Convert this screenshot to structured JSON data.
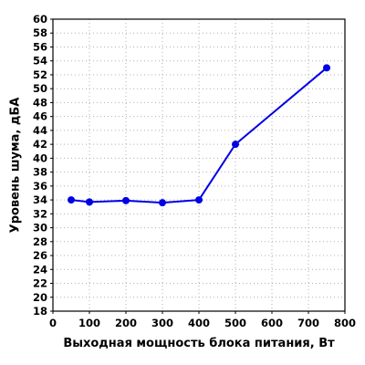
{
  "chart_data": {
    "type": "line",
    "title": "",
    "xlabel": "Выходная мощность блока питания, Вт",
    "ylabel": "Уровень шума, дБА",
    "xlim": [
      0,
      800
    ],
    "ylim": [
      18,
      60
    ],
    "x_ticks": [
      0,
      100,
      200,
      300,
      400,
      500,
      600,
      700,
      800
    ],
    "y_ticks": [
      18,
      20,
      22,
      24,
      26,
      28,
      30,
      32,
      34,
      36,
      38,
      40,
      42,
      44,
      46,
      48,
      50,
      52,
      54,
      56,
      58,
      60
    ],
    "grid": true,
    "legend": "none",
    "series": [
      {
        "color": "#0000e6",
        "points": [
          {
            "x": 50,
            "y": 34.0
          },
          {
            "x": 100,
            "y": 33.7
          },
          {
            "x": 200,
            "y": 33.9
          },
          {
            "x": 300,
            "y": 33.6
          },
          {
            "x": 400,
            "y": 34.0
          },
          {
            "x": 500,
            "y": 42.0
          },
          {
            "x": 750,
            "y": 53.0
          }
        ]
      }
    ]
  }
}
